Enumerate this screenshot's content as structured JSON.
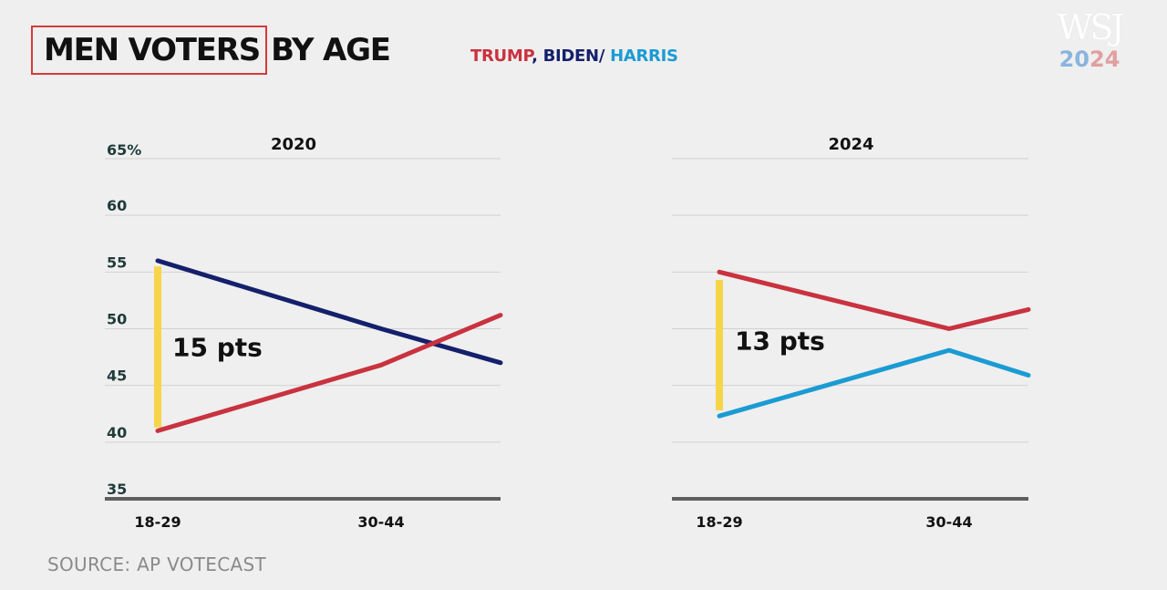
{
  "title": {
    "boxed": "MEN VOTERS",
    "rest": "BY AGE"
  },
  "legend": {
    "trump": "TRUMP",
    "sep1": ", ",
    "biden": "BIDEN",
    "sep2": "/ ",
    "harris": "HARRIS"
  },
  "logo": {
    "wsj": "WSJ",
    "year_pre": "2",
    "year_mid": "0",
    "year_post": "24"
  },
  "source": "SOURCE: AP VOTECAST",
  "colors": {
    "trump": "#c9323f",
    "biden": "#14206b",
    "harris": "#1b9bd3",
    "highlight": "#f7d54a",
    "grid": "#d2d2d2",
    "baseline": "#5f5f5f",
    "title_box": "#d63a3a",
    "logo_blue": "#8ab4de",
    "logo_red": "#e0a0a0"
  },
  "chart_data": [
    {
      "type": "line",
      "title": "2020",
      "categories": [
        "18-29",
        "30-44",
        ""
      ],
      "y_ticks": [
        "65%",
        "60",
        "55",
        "50",
        "45",
        "40",
        "35"
      ],
      "y_tick_values": [
        65,
        60,
        55,
        50,
        45,
        40,
        35
      ],
      "ylim": [
        35,
        65
      ],
      "grid": true,
      "series": [
        {
          "key": "biden",
          "values": [
            56,
            50,
            47
          ]
        },
        {
          "key": "trump",
          "values": [
            41,
            46.8,
            51.2
          ]
        }
      ],
      "annotation": {
        "label": "15 pts",
        "from": 41.3,
        "to": 55.5
      }
    },
    {
      "type": "line",
      "title": "2024",
      "categories": [
        "18-29",
        "30-44",
        ""
      ],
      "ylim": [
        35,
        65
      ],
      "grid": true,
      "series": [
        {
          "key": "trump",
          "values": [
            55,
            50,
            51.7
          ]
        },
        {
          "key": "harris",
          "values": [
            42.3,
            48.1,
            45.9
          ]
        }
      ],
      "annotation": {
        "label": "13 pts",
        "from": 42.8,
        "to": 54.3
      }
    }
  ]
}
